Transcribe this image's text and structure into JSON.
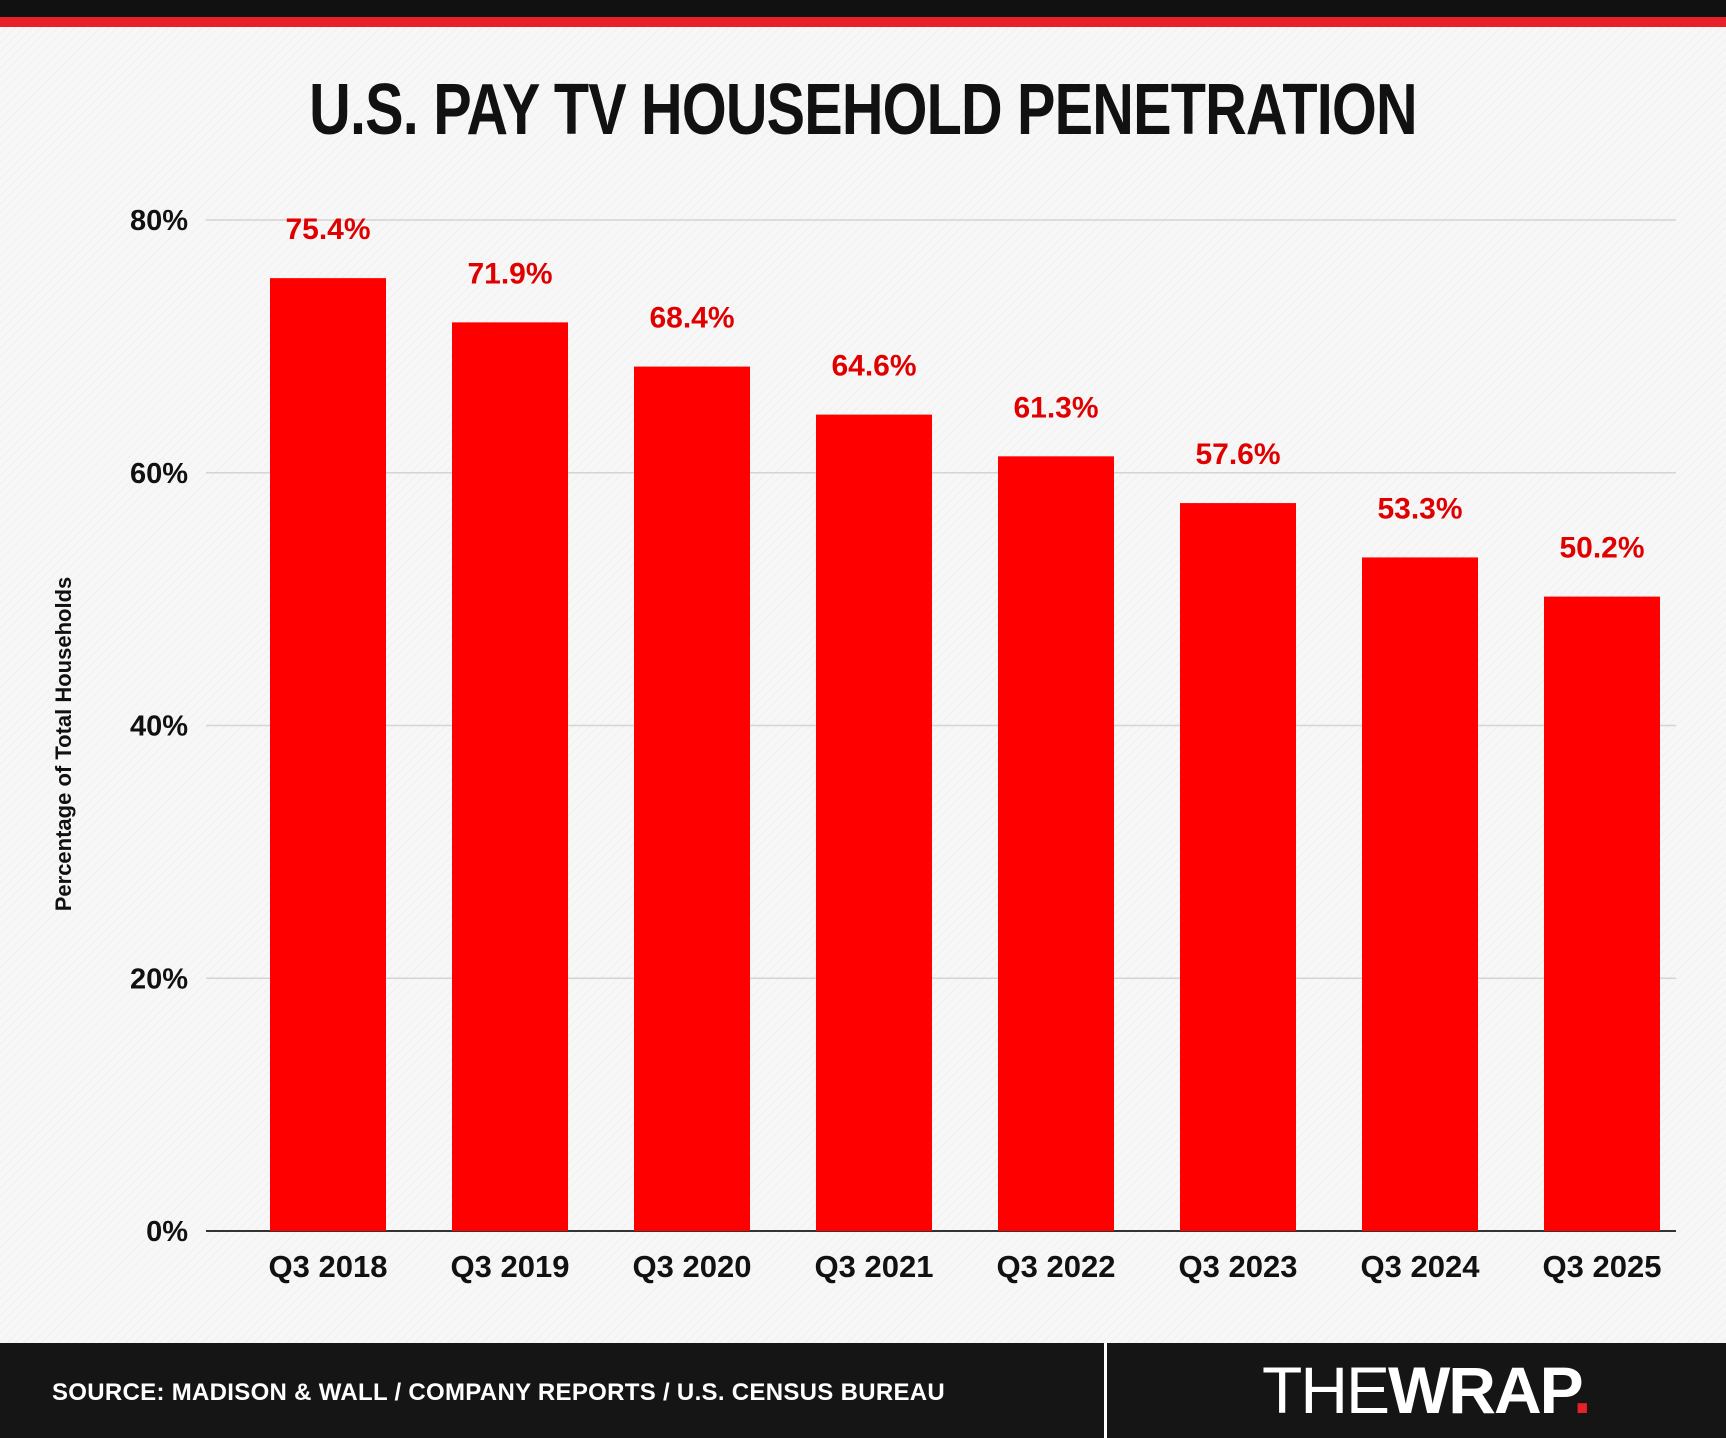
{
  "chart_data": {
    "type": "bar",
    "title": "U.S. PAY TV HOUSEHOLD PENETRATION",
    "ylabel": "Percentage of Total Households",
    "xlabel": "",
    "categories": [
      "Q3 2018",
      "Q3 2019",
      "Q3 2020",
      "Q3 2021",
      "Q3 2022",
      "Q3 2023",
      "Q3 2024",
      "Q3 2025"
    ],
    "values": [
      75.4,
      71.9,
      68.4,
      64.6,
      61.3,
      57.6,
      53.3,
      50.2
    ],
    "data_labels": [
      "75.4%",
      "71.9%",
      "68.4%",
      "64.6%",
      "61.3%",
      "57.6%",
      "53.3%",
      "50.2%"
    ],
    "ylim": [
      0,
      80
    ],
    "yticks": [
      0,
      20,
      40,
      60,
      80
    ],
    "ytick_labels": [
      "0%",
      "20%",
      "40%",
      "60%",
      "80%"
    ],
    "grid": true,
    "legend": "none",
    "bar_color": "#ff0000",
    "label_color": "#e00000"
  },
  "footer": {
    "source": "SOURCE: MADISON & WALL / COMPANY REPORTS / U.S. CENSUS BUREAU",
    "logo_thin": "THE",
    "logo_bold": "WRAP",
    "logo_dot": "."
  },
  "colors": {
    "accent": "#e8202a",
    "footer_bg": "#151515"
  }
}
